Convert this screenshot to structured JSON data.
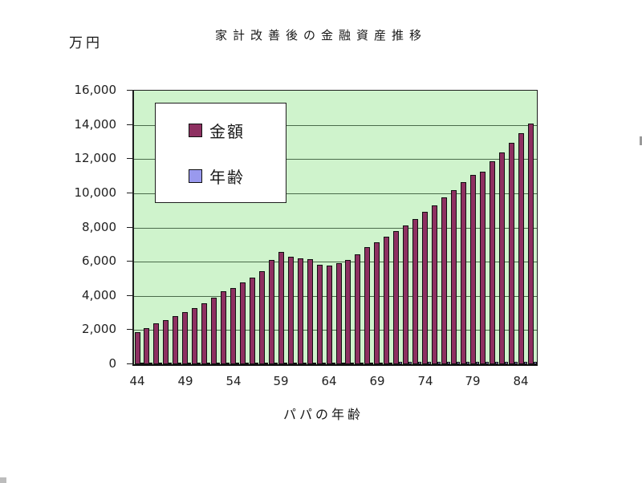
{
  "chart": {
    "title": "家計改善後の金融資産推移",
    "y_unit_label": "万円",
    "x_axis_title": "パパの年齢",
    "colors": {
      "plot_background": "#cff3cc",
      "gridline": "#4a6b4a",
      "axis": "#1d1d1d",
      "amount_bar": "#8e3061",
      "age_bar": "#9999ee"
    },
    "legend": {
      "items": [
        {
          "label": "金額",
          "color": "#8e3061"
        },
        {
          "label": "年齢",
          "color": "#9999ee"
        }
      ]
    }
  },
  "chart_data": {
    "type": "bar",
    "title": "家計改善後の金融資産推移",
    "xlabel": "パパの年齢",
    "ylabel": "万円",
    "ylim": [
      0,
      16000
    ],
    "y_tick_step": 2000,
    "y_tick_labels": [
      "0",
      "2,000",
      "4,000",
      "6,000",
      "8,000",
      "10,000",
      "12,000",
      "14,000",
      "16,000"
    ],
    "x": [
      44,
      45,
      46,
      47,
      48,
      49,
      50,
      51,
      52,
      53,
      54,
      55,
      56,
      57,
      58,
      59,
      60,
      61,
      62,
      63,
      64,
      65,
      66,
      67,
      68,
      69,
      70,
      71,
      72,
      73,
      74,
      75,
      76,
      77,
      78,
      79,
      80,
      81,
      82,
      83,
      84,
      85
    ],
    "x_tick_labels": [
      "44",
      "49",
      "54",
      "59",
      "64",
      "69",
      "74",
      "79",
      "84"
    ],
    "series": [
      {
        "name": "金額",
        "values": [
          1900,
          2130,
          2380,
          2600,
          2820,
          3060,
          3300,
          3580,
          3900,
          4250,
          4480,
          4780,
          5080,
          5460,
          6100,
          6550,
          6290,
          6210,
          6170,
          5800,
          5780,
          5900,
          6100,
          6450,
          6850,
          7150,
          7450,
          7790,
          8130,
          8480,
          8900,
          9270,
          9750,
          10200,
          10640,
          11080,
          11280,
          11890,
          12390,
          12950,
          13520,
          14090
        ]
      },
      {
        "name": "年齢",
        "values": [
          44,
          45,
          46,
          47,
          48,
          49,
          50,
          51,
          52,
          53,
          54,
          55,
          56,
          57,
          58,
          59,
          60,
          61,
          62,
          63,
          64,
          65,
          66,
          67,
          68,
          69,
          70,
          71,
          72,
          73,
          74,
          75,
          76,
          77,
          78,
          79,
          80,
          81,
          82,
          83,
          84,
          85
        ]
      }
    ],
    "grid": true,
    "legend_position": "upper-left-inside"
  }
}
